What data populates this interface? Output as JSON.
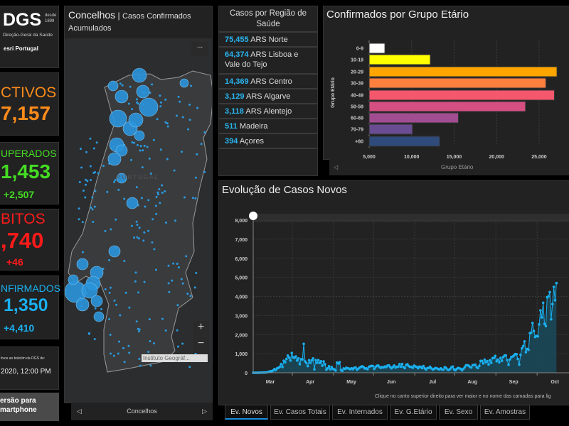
{
  "logo": {
    "text": "DGS",
    "since": "desde 1899",
    "subtitle": "Direção-Geral da Saúde",
    "partner": "esri Portugal"
  },
  "kpis": {
    "activos": {
      "title": "CTIVOS",
      "value": "7,157",
      "color": "#ff8c1a"
    },
    "recuperados": {
      "title": "UPERADOS",
      "value": "1,453",
      "delta": "+2,507",
      "color": "#44dd22"
    },
    "obitos": {
      "title": "BITOS",
      "value": ",740",
      "delta": "+46",
      "color": "#ff1a1a"
    },
    "confirmados": {
      "title": "NFIRMADOS",
      "value": "1,350",
      "delta": "+4,410",
      "color": "#1ab0f0"
    }
  },
  "update": {
    "label": "tivos ao boletim da DGS de:",
    "date": "2020, 12:00 PM"
  },
  "smartphone_button": {
    "line1": "ersão para",
    "line2": "martphone"
  },
  "map": {
    "title": "Concelhos",
    "subtitle": "Casos Confirmados Acumulados",
    "country_label": "PORTUGAL",
    "attribution": "Instituto Geográf...",
    "footer": "Concelhos",
    "menu": "...",
    "zoom_in": "+",
    "zoom_out": "−"
  },
  "regions": {
    "title": "Casos por Região de Saúde",
    "items": [
      {
        "value": "75,455",
        "name": "ARS Norte"
      },
      {
        "value": "64,374",
        "name": "ARS Lisboa e Vale do Tejo"
      },
      {
        "value": "14,369",
        "name": "ARS Centro"
      },
      {
        "value": "3,129",
        "name": "ARS Algarve"
      },
      {
        "value": "3,118",
        "name": "ARS Alentejo"
      },
      {
        "value": "511",
        "name": "Madeira"
      },
      {
        "value": "394",
        "name": "Açores"
      }
    ]
  },
  "age_panel": {
    "title": "Confirmados por Grupo Etário",
    "footer": "Grupo Etário"
  },
  "evo_panel": {
    "title": "Evolução de Casos Novos",
    "hint": "Clique no canto superior direito para ver maior e no nome das camadas para lig"
  },
  "tabs": [
    "Ev. Novos",
    "Ev. Casos Totais",
    "Ev. Internados",
    "Ev. G.Etário",
    "Ev. Sexo",
    "Ev. Amostras"
  ],
  "chart_data": [
    {
      "type": "bar",
      "orientation": "horizontal",
      "ylabel": "Grupo Etário",
      "categories": [
        "0-9",
        "10-19",
        "20-29",
        "30-39",
        "40-49",
        "50-59",
        "60-69",
        "70-79",
        "+80"
      ],
      "values": [
        6850,
        12200,
        27100,
        25800,
        26800,
        23400,
        15500,
        10100,
        13300
      ],
      "colors": [
        "#ffffff",
        "#ffff00",
        "#ffa500",
        "#ff7f3f",
        "#f5576c",
        "#d64f82",
        "#a24d92",
        "#6a4c93",
        "#2f4b7c"
      ],
      "xlim": [
        5000,
        30000
      ],
      "xticks": [
        "5,000",
        "10,000",
        "15,000",
        "20,000",
        "25,000"
      ],
      "grid": true
    },
    {
      "type": "area",
      "color": "#1ab0f0",
      "ylim": [
        0,
        8000
      ],
      "yticks": [
        "0",
        "1,000",
        "2,000",
        "3,000",
        "4,000",
        "5,000",
        "6,000",
        "7,000",
        "8,000"
      ],
      "xticks": [
        "Mar",
        "Apr",
        "May",
        "Jun",
        "Jul",
        "Aug",
        "Sep",
        "Oct"
      ],
      "grid": true,
      "values": [
        2,
        0,
        3,
        2,
        4,
        4,
        9,
        9,
        11,
        18,
        19,
        33,
        57,
        76,
        86,
        117,
        194,
        143,
        235,
        260,
        320,
        460,
        302,
        633,
        549,
        724,
        902,
        792,
        638,
        1035,
        808,
        783,
        852,
        638,
        754,
        452,
        712,
        699,
        1516,
        598,
        515,
        349,
        657,
        514,
        643,
        750,
        181,
        663,
        521,
        657,
        516,
        603,
        371,
        595,
        444,
        163,
        234,
        341,
        181,
        295,
        205,
        173,
        120,
        533,
        480,
        553,
        150,
        100,
        226,
        200,
        264,
        234,
        223,
        180,
        234,
        188,
        257,
        272,
        158,
        212,
        266,
        310,
        338,
        295,
        219,
        240,
        186,
        312,
        341,
        359,
        350,
        200,
        302,
        366,
        380,
        298,
        258,
        294,
        277,
        330,
        292,
        377,
        382,
        300,
        232,
        306,
        378,
        270,
        311,
        323,
        450,
        318,
        457,
        292,
        243,
        408,
        443,
        346,
        309,
        311,
        255,
        374,
        329,
        312,
        235,
        318,
        303,
        248,
        351,
        232,
        164,
        246,
        254,
        313,
        232,
        174,
        193,
        252,
        233,
        199,
        172,
        230,
        174,
        164,
        290,
        252,
        167,
        142,
        196,
        275,
        325,
        178,
        132,
        204,
        251,
        236,
        201,
        131,
        204,
        287,
        388,
        397,
        370,
        301,
        274,
        400,
        401,
        423,
        295,
        246,
        362,
        620,
        619,
        490,
        687,
        552,
        613,
        434,
        658,
        520,
        770,
        772,
        883,
        600,
        691,
        549,
        780,
        621,
        828,
        900,
        904,
        660,
        420,
        700,
        819,
        850,
        899,
        978,
        968,
        717,
        427,
        939,
        1278,
        1394,
        1646,
        1079,
        1249,
        1201,
        2072,
        2101,
        2608,
        2188,
        1876,
        1927,
        1907,
        2535,
        3270,
        2899,
        3669,
        2562,
        2447,
        3960,
        4000,
        4224,
        2800,
        3600,
        4500,
        3800,
        4700
      ]
    }
  ]
}
